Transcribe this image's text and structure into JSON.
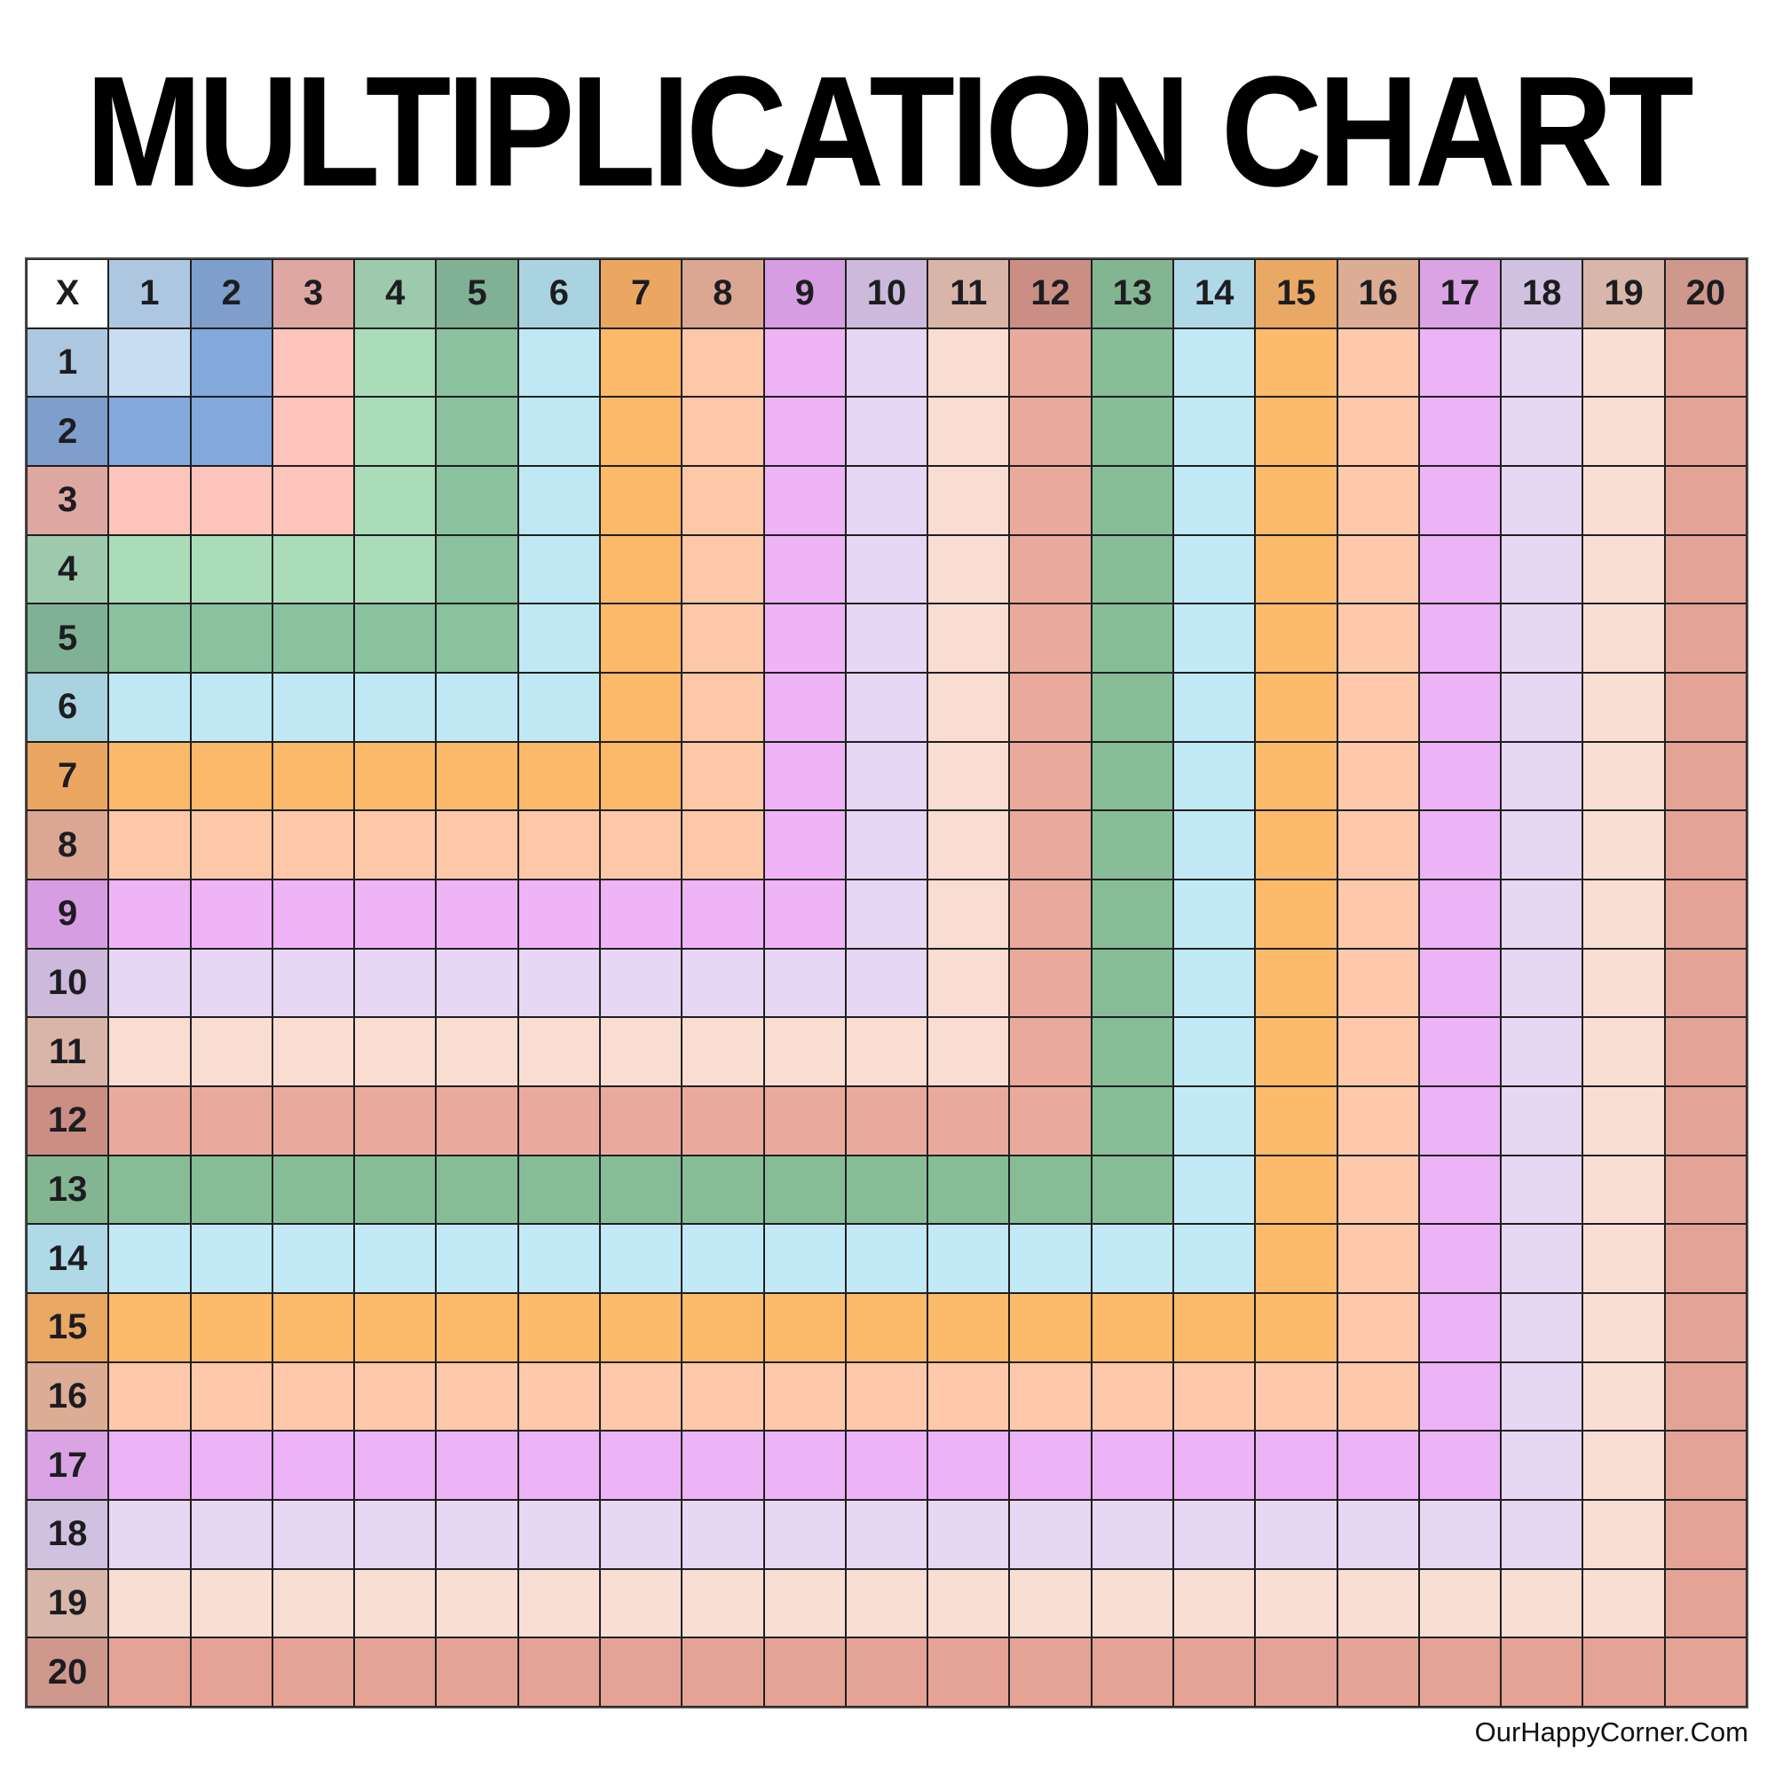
{
  "page": {
    "title": "MULTIPLICATION CHART",
    "watermark": "OurHappyCorner.Com",
    "background_color": "#ffffff"
  },
  "grid": {
    "corner_label": "X",
    "corner_bg": "#ffffff",
    "line_color": "#1f1f1f",
    "number_color": "#1d1d21",
    "col_labels": [
      "1",
      "2",
      "3",
      "4",
      "5",
      "6",
      "7",
      "8",
      "9",
      "10",
      "11",
      "12",
      "13",
      "14",
      "15",
      "16",
      "17",
      "18",
      "19",
      "20"
    ],
    "row_labels": [
      "1",
      "2",
      "3",
      "4",
      "5",
      "6",
      "7",
      "8",
      "9",
      "10",
      "11",
      "12",
      "13",
      "14",
      "15",
      "16",
      "17",
      "18",
      "19",
      "20"
    ],
    "header_band_colors": [
      "#aec7e0",
      "#7e9ecb",
      "#dfa7a1",
      "#9dc9ac",
      "#80b194",
      "#a9d3e1",
      "#eba761",
      "#dba793",
      "#d79de2",
      "#cdb9dc",
      "#d9b5a9",
      "#cb8e84",
      "#83b592",
      "#b0d9e8",
      "#e9a863",
      "#ddac94",
      "#daa3e4",
      "#d0c1e0",
      "#d8b6a9",
      "#cf988d"
    ],
    "cell_band_colors": [
      "#c7def2",
      "#83a8dc",
      "#fdc4bb",
      "#abdcba",
      "#8ac19e",
      "#c0e8f4",
      "#fbb969",
      "#fdc8a8",
      "#eeb4f6",
      "#e7d6f4",
      "#f9ddd2",
      "#e9aa9d",
      "#86bd97",
      "#c2eaf6",
      "#fcba6b",
      "#fdc9aa",
      "#ecb3f6",
      "#e6d7f3",
      "#f9ded3",
      "#e5a396"
    ],
    "fill_rule": "interior cell (r,c) is blank text; its background is cell_band_colors[max(r,c)]"
  },
  "chart_data": {
    "type": "table",
    "title": "MULTIPLICATION CHART",
    "corner_label": "X",
    "columns": [
      "1",
      "2",
      "3",
      "4",
      "5",
      "6",
      "7",
      "8",
      "9",
      "10",
      "11",
      "12",
      "13",
      "14",
      "15",
      "16",
      "17",
      "18",
      "19",
      "20"
    ],
    "rows": [
      "1",
      "2",
      "3",
      "4",
      "5",
      "6",
      "7",
      "8",
      "9",
      "10",
      "11",
      "12",
      "13",
      "14",
      "15",
      "16",
      "17",
      "18",
      "19",
      "20"
    ],
    "cell_values": "blank — practice chart with no products filled in; cells are color-coded only",
    "color_rule": "each cell takes the color band of max(row index, column index), forming nested L-shaped bands",
    "legend_position": "none",
    "grid": "on",
    "annotation": "OurHappyCorner.Com"
  }
}
